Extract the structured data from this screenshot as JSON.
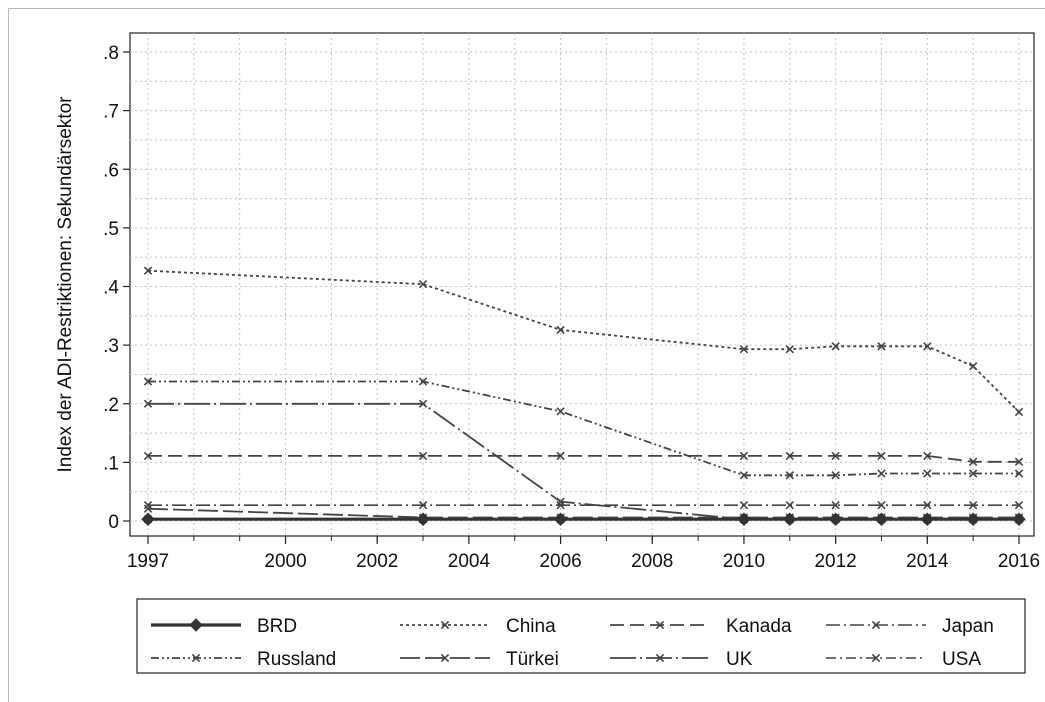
{
  "chart_data": {
    "type": "line",
    "ylabel": "Index der ADI-Restriktionen: Sekundärsektor",
    "xlabel": "",
    "xlim": [
      1997,
      2016
    ],
    "ylim": [
      0,
      0.8
    ],
    "x_ticks": [
      1997,
      2000,
      2002,
      2004,
      2006,
      2008,
      2010,
      2012,
      2014,
      2016
    ],
    "x_tick_labels": [
      "1997",
      "2000",
      "2002",
      "2004",
      "2006",
      "2008",
      "2010",
      "2012",
      "2014",
      "2016"
    ],
    "y_ticks": [
      0,
      0.1,
      0.2,
      0.3,
      0.4,
      0.5,
      0.6,
      0.7,
      0.8
    ],
    "y_tick_labels": [
      "0",
      ".1",
      ".2",
      ".3",
      ".4",
      ".5",
      ".6",
      ".7",
      ".8"
    ],
    "grid": true,
    "legend_position": "bottom",
    "x": [
      1997,
      2003,
      2006,
      2010,
      2011,
      2012,
      2013,
      2014,
      2015,
      2016
    ],
    "series": [
      {
        "name": "BRD",
        "values": [
          0.003,
          0.003,
          0.003,
          0.003,
          0.003,
          0.003,
          0.003,
          0.003,
          0.003,
          0.003
        ],
        "color": "#333333",
        "dash": "solid",
        "marker": "diamond",
        "width": 3.2
      },
      {
        "name": "China",
        "values": [
          0.427,
          0.404,
          0.326,
          0.293,
          0.293,
          0.298,
          0.298,
          0.298,
          0.264,
          0.186
        ],
        "color": "#444444",
        "dash": "3,3",
        "marker": "x",
        "width": 1.8
      },
      {
        "name": "Kanada",
        "values": [
          0.111,
          0.111,
          0.111,
          0.111,
          0.111,
          0.111,
          0.111,
          0.111,
          0.101,
          0.101
        ],
        "color": "#444444",
        "dash": "14,6",
        "marker": "x",
        "width": 1.8
      },
      {
        "name": "Japan",
        "values": [
          0.027,
          0.027,
          0.027,
          0.027,
          0.027,
          0.027,
          0.027,
          0.027,
          0.027,
          0.027
        ],
        "color": "#444444",
        "dash": "14,4,2,4",
        "marker": "x",
        "width": 1.6
      },
      {
        "name": "Russland",
        "values": [
          0.238,
          0.238,
          0.187,
          0.078,
          0.078,
          0.078,
          0.081,
          0.081,
          0.081,
          0.081
        ],
        "color": "#444444",
        "dash": "8,3,2,3,2,3",
        "marker": "x",
        "width": 1.8
      },
      {
        "name": "Türkei",
        "values": [
          0.021,
          0.006,
          0.006,
          0.006,
          0.006,
          0.006,
          0.006,
          0.006,
          0.006,
          0.006
        ],
        "color": "#444444",
        "dash": "20,5",
        "marker": "x",
        "width": 1.8
      },
      {
        "name": "UK",
        "values": [
          0.2,
          0.2,
          0.033,
          0.003,
          0.003,
          0.003,
          0.003,
          0.003,
          0.003,
          0.003
        ],
        "color": "#444444",
        "dash": "26,4,2,4",
        "marker": "x",
        "width": 1.8
      },
      {
        "name": "USA",
        "values": [
          0.003,
          0.003,
          0.003,
          0.003,
          0.003,
          0.003,
          0.003,
          0.003,
          0.003,
          0.003
        ],
        "color": "#444444",
        "dash": "10,4,2,4",
        "marker": "x",
        "width": 1.6
      }
    ]
  }
}
